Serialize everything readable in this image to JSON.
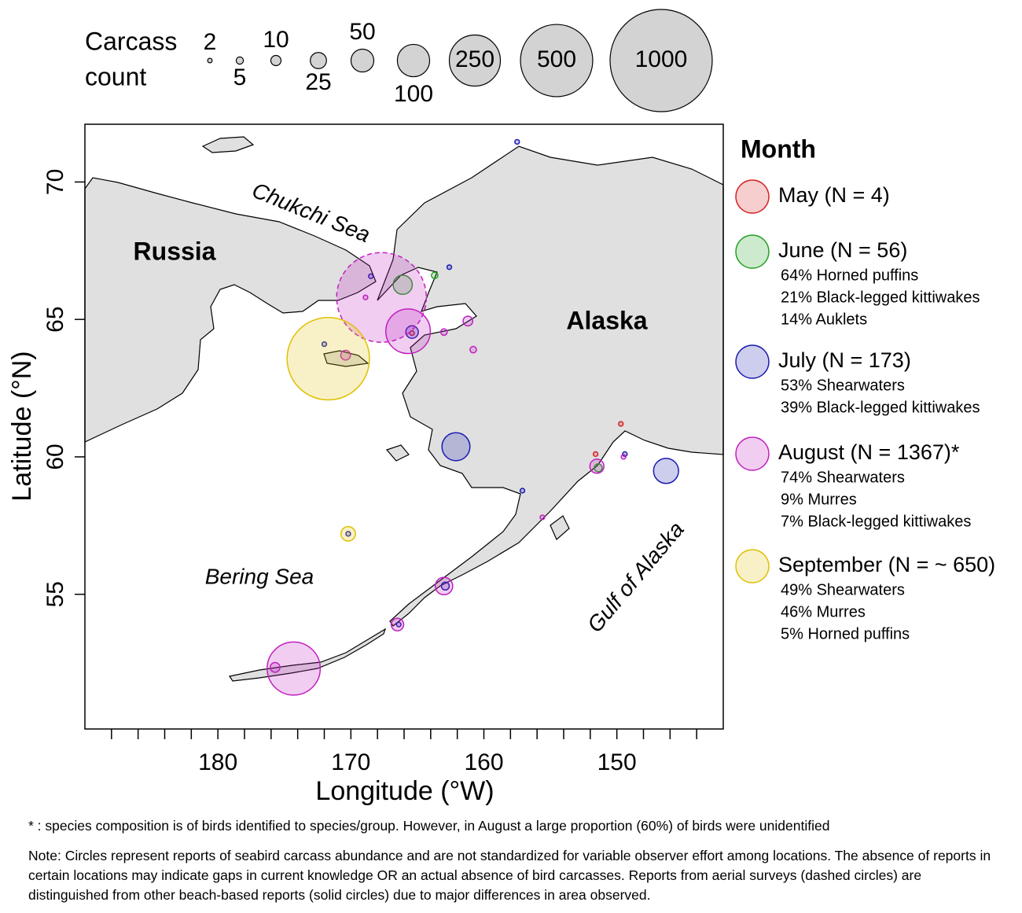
{
  "chart_data": {
    "type": "bubble_map",
    "xlabel": "Longitude (°W)",
    "ylabel": "Latitude (°N)",
    "xlim": [
      190,
      142
    ],
    "ylim": [
      50.1,
      72.1
    ],
    "xticks": [
      180,
      170,
      160,
      150
    ],
    "xminorticks": [
      188,
      186,
      184,
      182,
      178,
      176,
      174,
      172,
      168,
      166,
      164,
      162,
      158,
      156,
      154,
      152,
      148,
      146,
      144
    ],
    "yticks": [
      55,
      60,
      65,
      70
    ],
    "size_legend": {
      "title": [
        "Carcass",
        "count"
      ],
      "sizes": [
        2,
        5,
        10,
        25,
        50,
        100,
        250,
        500,
        1000
      ]
    },
    "legend_title": "Month",
    "map_labels": [
      "Russia",
      "Alaska",
      "Chukchi Sea",
      "Bering Sea",
      "Gulf of Alaska"
    ],
    "series": [
      {
        "name": "May (N = 4)",
        "color": "#d62020",
        "notes": [],
        "x": [
          165.4,
          149.7,
          151.6
        ],
        "y": [
          64.5,
          61.2,
          60.1
        ],
        "size": [
          2,
          2,
          2
        ]
      },
      {
        "name": "June (N = 56)",
        "color": "#22a022",
        "notes": [
          "64% Horned puffins",
          "21% Black-legged kittiwakes",
          "14% Auklets"
        ],
        "x": [
          166.1,
          151.4,
          163.7
        ],
        "y": [
          66.26,
          59.6,
          66.6
        ],
        "size": [
          35,
          6,
          4
        ]
      },
      {
        "name": "July (N = 173)",
        "color": "#1a1ab0",
        "notes": [
          "53% Shearwaters",
          "39% Black-legged kittiwakes"
        ],
        "x": [
          162.1,
          146.3,
          165.4,
          162.9,
          166.4,
          157.5,
          168.5,
          172.0,
          157.1,
          170.2,
          162.6,
          149.4
        ],
        "y": [
          60.37,
          59.49,
          64.54,
          55.3,
          53.9,
          71.46,
          66.57,
          64.1,
          58.77,
          57.2,
          66.9,
          60.1
        ],
        "size": [
          75,
          60,
          15,
          6,
          2,
          2,
          2,
          2,
          2,
          2,
          2,
          2
        ]
      },
      {
        "name": "August (N = 1367)*",
        "color": "#c020c0",
        "notes": [
          "74% Shearwaters",
          "9% Murres",
          "7% Black-legged kittiwakes"
        ],
        "x": [
          167.7,
          165.7,
          174.3,
          175.7,
          163.0,
          166.5,
          151.5,
          170.4,
          161.2,
          163.0,
          160.8,
          168.9,
          155.6,
          149.5
        ],
        "y": [
          65.8,
          64.57,
          52.3,
          52.34,
          55.3,
          53.9,
          59.66,
          63.7,
          64.94,
          64.54,
          63.9,
          65.8,
          57.8,
          60.0
        ],
        "size": [
          770,
          190,
          270,
          9,
          29,
          15,
          19,
          9,
          9,
          4,
          4,
          2,
          2,
          2
        ],
        "dashed": [
          true,
          false,
          false,
          false,
          false,
          false,
          false,
          false,
          false,
          false,
          false,
          false,
          false,
          false
        ]
      },
      {
        "name": "September (N = ~ 650)",
        "color": "#e0c000",
        "notes": [
          "49% Shearwaters",
          "46% Murres",
          "5% Horned puffins"
        ],
        "x": [
          171.7,
          170.2
        ],
        "y": [
          63.57,
          57.2
        ],
        "size": [
          650,
          20
        ]
      }
    ],
    "footnotes": [
      "* : species composition is of birds identified to species/group. However, in August a large proportion (60%) of birds were unidentified",
      "Note: Circles represent reports of seabird carcass abundance and are not standardized for variable observer effort among locations. The absence of reports in certain locations may indicate gaps in current knowledge OR an actual absence of bird carcasses. Reports from aerial surveys (dashed circles) are distinguished from other beach-based reports (solid circles) due to major differences in area observed."
    ]
  }
}
